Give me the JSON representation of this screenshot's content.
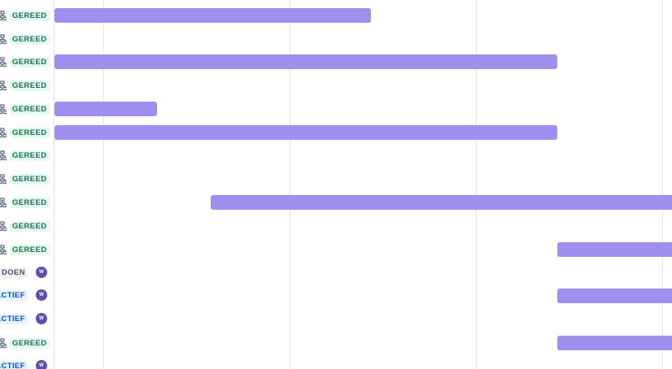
{
  "colors": {
    "bar": "#9f8fef",
    "done_bg": "#e3fcef",
    "done_text": "#216e4e",
    "active_bg": "#e9f2ff",
    "active_text": "#0055cc",
    "todo_bg": "#f1f2f4",
    "todo_text": "#44546f",
    "avatar": "#5e4db2"
  },
  "rows": [
    {
      "icon": "hierarchy-icon",
      "status": "GEREED",
      "kind": "done"
    },
    {
      "icon": "hierarchy-icon",
      "status": "GEREED",
      "kind": "done"
    },
    {
      "icon": "hierarchy-icon",
      "status": "GEREED",
      "kind": "done"
    },
    {
      "icon": "hierarchy-icon",
      "status": "GEREED",
      "kind": "done"
    },
    {
      "icon": "hierarchy-icon",
      "status": "GEREED",
      "kind": "done"
    },
    {
      "icon": "hierarchy-icon",
      "status": "GEREED",
      "kind": "done"
    },
    {
      "icon": "hierarchy-icon",
      "status": "GEREED",
      "kind": "done"
    },
    {
      "icon": "hierarchy-icon",
      "status": "GEREED",
      "kind": "done"
    },
    {
      "icon": "hierarchy-icon",
      "status": "GEREED",
      "kind": "done"
    },
    {
      "icon": "hierarchy-icon",
      "status": "GEREED",
      "kind": "done"
    },
    {
      "icon": "hierarchy-icon",
      "status": "GEREED",
      "kind": "done"
    },
    {
      "status": "DOEN",
      "kind": "todo",
      "avatar": "W"
    },
    {
      "status": "ACTIEF",
      "kind": "active",
      "avatar": "W"
    },
    {
      "status": "ACTIEF",
      "kind": "active",
      "avatar": "W"
    },
    {
      "icon": "hierarchy-icon",
      "status": "GEREED",
      "kind": "done"
    },
    {
      "status": "ACTIEF",
      "kind": "active",
      "avatar": "W"
    }
  ]
}
